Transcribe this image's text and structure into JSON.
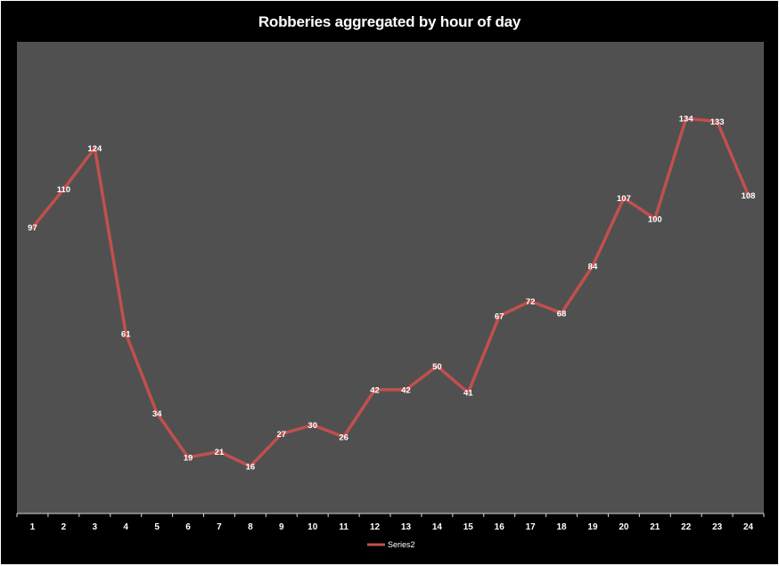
{
  "chart_data": {
    "type": "line",
    "title": "Robberies aggregated by hour of day",
    "xlabel": "",
    "ylabel": "",
    "categories": [
      "1",
      "2",
      "3",
      "4",
      "5",
      "6",
      "7",
      "8",
      "9",
      "10",
      "11",
      "12",
      "13",
      "14",
      "15",
      "16",
      "17",
      "18",
      "19",
      "20",
      "21",
      "22",
      "23",
      "24"
    ],
    "series": [
      {
        "name": "Series2",
        "values": [
          97,
          110,
          124,
          61,
          34,
          19,
          21,
          16,
          27,
          30,
          26,
          42,
          42,
          50,
          41,
          67,
          72,
          68,
          84,
          107,
          100,
          134,
          133,
          108
        ]
      }
    ],
    "ylim": [
      0,
      160
    ],
    "grid": false,
    "legend": "bottom",
    "show_data_labels": true
  },
  "colors": {
    "background": "#000000",
    "plot_area": "#505050",
    "series_line": "#c0504d",
    "text": "#ffffff"
  }
}
